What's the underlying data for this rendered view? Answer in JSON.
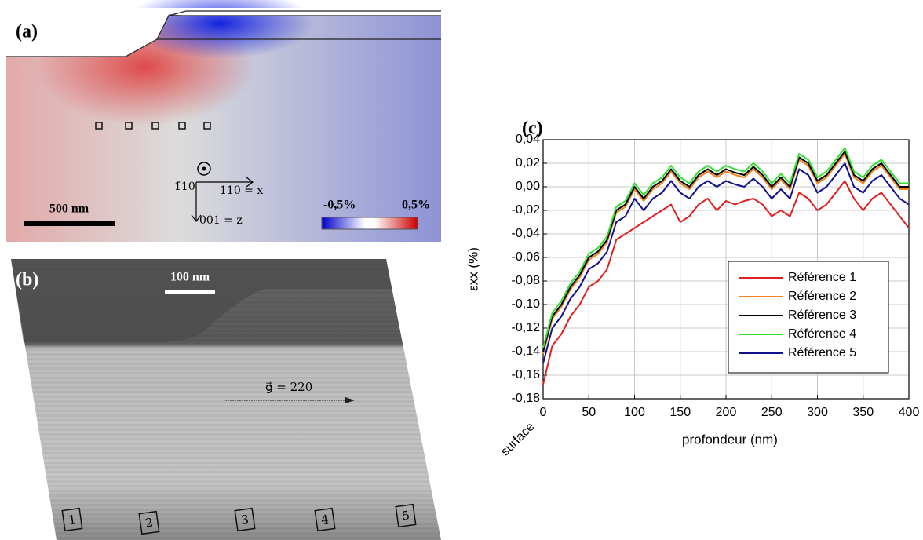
{
  "panel_a": {
    "label": "(a)",
    "scale_bar": "500 nm",
    "axis_normal": "1̄10",
    "axis_x": "110 = x",
    "axis_z": "001 = z",
    "colorbar_min": "-0,5%",
    "colorbar_max": "0,5%"
  },
  "panel_b": {
    "label": "(b)",
    "scale_bar": "100 nm",
    "g_vector": "g⃗ = 220",
    "regions": [
      "1",
      "2",
      "3",
      "4",
      "5"
    ]
  },
  "chart_data": {
    "type": "line",
    "title": "(c)",
    "xlabel": "profondeur (nm)",
    "ylabel": "εxx (%)",
    "x_annotation": "surface",
    "x": [
      0,
      10,
      20,
      30,
      40,
      50,
      60,
      70,
      80,
      90,
      100,
      110,
      120,
      130,
      140,
      150,
      160,
      170,
      180,
      190,
      200,
      210,
      220,
      230,
      240,
      250,
      260,
      270,
      280,
      290,
      300,
      310,
      320,
      330,
      340,
      350,
      360,
      370,
      380,
      390,
      400
    ],
    "xlim": [
      0,
      400
    ],
    "xticks": [
      0,
      50,
      100,
      150,
      200,
      250,
      300,
      350,
      400
    ],
    "ylim": [
      -0.18,
      0.04
    ],
    "yticks": [
      {
        "value": -0.18,
        "label": "-0,18"
      },
      {
        "value": -0.16,
        "label": "-0,16"
      },
      {
        "value": -0.14,
        "label": "-0,14"
      },
      {
        "value": -0.12,
        "label": "-0,12"
      },
      {
        "value": -0.1,
        "label": "-0,10"
      },
      {
        "value": -0.08,
        "label": "-0,08"
      },
      {
        "value": -0.06,
        "label": "-0,06"
      },
      {
        "value": -0.04,
        "label": "-0,04"
      },
      {
        "value": -0.02,
        "label": "-0,02"
      },
      {
        "value": 0,
        "label": "0,00"
      },
      {
        "value": 0.02,
        "label": "0,02"
      },
      {
        "value": 0.04,
        "label": "0,04"
      }
    ],
    "grid": true,
    "legend": "lower right",
    "series": [
      {
        "name": "Référence 1",
        "color": "#e02020",
        "values": [
          -0.168,
          -0.135,
          -0.125,
          -0.11,
          -0.1,
          -0.085,
          -0.08,
          -0.07,
          -0.045,
          -0.04,
          -0.035,
          -0.03,
          -0.025,
          -0.02,
          -0.015,
          -0.03,
          -0.025,
          -0.015,
          -0.01,
          -0.02,
          -0.012,
          -0.015,
          -0.012,
          -0.01,
          -0.015,
          -0.025,
          -0.02,
          -0.025,
          -0.005,
          -0.01,
          -0.02,
          -0.015,
          -0.005,
          0.005,
          -0.01,
          -0.02,
          -0.01,
          -0.005,
          -0.015,
          -0.025,
          -0.035
        ]
      },
      {
        "name": "Référence 2",
        "color": "#f08020",
        "values": [
          -0.142,
          -0.112,
          -0.102,
          -0.087,
          -0.077,
          -0.062,
          -0.057,
          -0.047,
          -0.022,
          -0.017,
          -0.002,
          -0.012,
          -0.002,
          0.003,
          0.013,
          0.003,
          -0.002,
          0.008,
          0.013,
          0.008,
          0.013,
          0.01,
          0.008,
          0.015,
          0.008,
          -0.002,
          0.006,
          -0.002,
          0.023,
          0.018,
          0.003,
          0.008,
          0.018,
          0.028,
          0.008,
          0.003,
          0.013,
          0.018,
          0.008,
          -0.002,
          -0.002
        ]
      },
      {
        "name": "Référence 3",
        "color": "#000000",
        "values": [
          -0.14,
          -0.11,
          -0.1,
          -0.085,
          -0.075,
          -0.06,
          -0.055,
          -0.045,
          -0.02,
          -0.015,
          0.0,
          -0.01,
          0.0,
          0.005,
          0.015,
          0.005,
          0.0,
          0.01,
          0.015,
          0.01,
          0.015,
          0.012,
          0.01,
          0.017,
          0.01,
          0.0,
          0.008,
          0.0,
          0.025,
          0.02,
          0.005,
          0.01,
          0.02,
          0.03,
          0.01,
          0.005,
          0.015,
          0.02,
          0.01,
          0.0,
          0.0
        ]
      },
      {
        "name": "Référence 4",
        "color": "#30e030",
        "values": [
          -0.137,
          -0.107,
          -0.097,
          -0.082,
          -0.072,
          -0.057,
          -0.052,
          -0.042,
          -0.017,
          -0.012,
          0.003,
          -0.007,
          0.003,
          0.008,
          0.018,
          0.008,
          0.003,
          0.013,
          0.018,
          0.013,
          0.018,
          0.015,
          0.013,
          0.02,
          0.013,
          0.003,
          0.011,
          0.003,
          0.028,
          0.023,
          0.008,
          0.013,
          0.023,
          0.033,
          0.013,
          0.008,
          0.018,
          0.023,
          0.013,
          0.003,
          0.003
        ]
      },
      {
        "name": "Référence 5",
        "color": "#101090",
        "values": [
          -0.15,
          -0.12,
          -0.11,
          -0.095,
          -0.085,
          -0.07,
          -0.065,
          -0.055,
          -0.03,
          -0.025,
          -0.01,
          -0.02,
          -0.01,
          -0.005,
          0.005,
          -0.005,
          -0.01,
          0.0,
          0.005,
          0.0,
          0.005,
          0.002,
          0.0,
          0.007,
          0.0,
          -0.01,
          -0.002,
          -0.01,
          0.015,
          0.01,
          -0.005,
          0.0,
          0.01,
          0.02,
          0.0,
          -0.005,
          0.005,
          0.01,
          0.0,
          -0.01,
          -0.015
        ]
      }
    ]
  }
}
